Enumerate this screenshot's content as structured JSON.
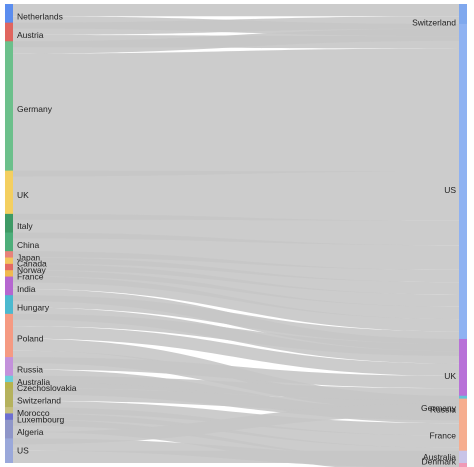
{
  "chart_data": {
    "type": "sankey",
    "title": "",
    "sources": [
      {
        "name": "Netherlands",
        "color": "#5b8def"
      },
      {
        "name": "Austria",
        "color": "#e0655f"
      },
      {
        "name": "Germany",
        "color": "#6cc08b"
      },
      {
        "name": "UK",
        "color": "#f4cf60"
      },
      {
        "name": "Italy",
        "color": "#3e9a65"
      },
      {
        "name": "China",
        "color": "#4dae7a"
      },
      {
        "name": "Japan",
        "color": "#e8827b"
      },
      {
        "name": "Canada",
        "color": "#f2c55e"
      },
      {
        "name": "Norway",
        "color": "#e36a64"
      },
      {
        "name": "France",
        "color": "#f0b94f"
      },
      {
        "name": "India",
        "color": "#b566d0"
      },
      {
        "name": "Hungary",
        "color": "#4bb9cf"
      },
      {
        "name": "Poland",
        "color": "#f59a82"
      },
      {
        "name": "Russia",
        "color": "#c391db"
      },
      {
        "name": "Australia",
        "color": "#6ccfd9"
      },
      {
        "name": "Czechoslovakia",
        "color": "#b7b34c"
      },
      {
        "name": "Switzerland",
        "color": "#b5b25d"
      },
      {
        "name": "Morocco",
        "color": "#c7c07f"
      },
      {
        "name": "Luxembourg",
        "color": "#6d6fd1"
      },
      {
        "name": "Algeria",
        "color": "#8f96c9"
      },
      {
        "name": "US",
        "color": "#9aa8da"
      }
    ],
    "targets": [
      {
        "name": "Switzerland",
        "color": "#7fa8ee"
      },
      {
        "name": "US",
        "color": "#8fb2f2"
      },
      {
        "name": "UK",
        "color": "#b871d8"
      },
      {
        "name": "Germany",
        "color": "#63c4d6"
      },
      {
        "name": "Russia",
        "color": "#f29a7e"
      },
      {
        "name": "France",
        "color": "#f6ad8f"
      },
      {
        "name": "Denmark",
        "color": "#f09ab6"
      },
      {
        "name": "Australia",
        "color": "#c9c4e8"
      }
    ],
    "links": [
      {
        "source": "Netherlands",
        "target": "Switzerland",
        "value": 1
      },
      {
        "source": "Netherlands",
        "target": "US",
        "value": 1
      },
      {
        "source": "Austria",
        "target": "Switzerland",
        "value": 1
      },
      {
        "source": "Austria",
        "target": "US",
        "value": 1
      },
      {
        "source": "Germany",
        "target": "Switzerland",
        "value": 1
      },
      {
        "source": "Germany",
        "target": "US",
        "value": 10
      },
      {
        "source": "UK",
        "target": "US",
        "value": 4
      },
      {
        "source": "Italy",
        "target": "US",
        "value": 2
      },
      {
        "source": "China",
        "target": "US",
        "value": 2
      },
      {
        "source": "Japan",
        "target": "US",
        "value": 1
      },
      {
        "source": "Canada",
        "target": "US",
        "value": 1
      },
      {
        "source": "Norway",
        "target": "US",
        "value": 1
      },
      {
        "source": "France",
        "target": "US",
        "value": 1
      },
      {
        "source": "India",
        "target": "US",
        "value": 1
      },
      {
        "source": "India",
        "target": "UK",
        "value": 1
      },
      {
        "source": "Hungary",
        "target": "US",
        "value": 1
      },
      {
        "source": "Hungary",
        "target": "UK",
        "value": 1
      },
      {
        "source": "Poland",
        "target": "US",
        "value": 1
      },
      {
        "source": "Poland",
        "target": "UK",
        "value": 1
      },
      {
        "source": "Poland",
        "target": "Germany",
        "value": 1
      },
      {
        "source": "Poland",
        "target": "France",
        "value": 1
      },
      {
        "source": "Russia",
        "target": "UK",
        "value": 1
      },
      {
        "source": "Russia",
        "target": "France",
        "value": 1
      },
      {
        "source": "Australia",
        "target": "UK",
        "value": 1
      },
      {
        "source": "Czechoslovakia",
        "target": "Germany",
        "value": 1
      },
      {
        "source": "Switzerland",
        "target": "UK",
        "value": 1
      },
      {
        "source": "Switzerland",
        "target": "France",
        "value": 1
      },
      {
        "source": "Morocco",
        "target": "France",
        "value": 1
      },
      {
        "source": "Luxembourg",
        "target": "France",
        "value": 1
      },
      {
        "source": "Algeria",
        "target": "France",
        "value": 1
      },
      {
        "source": "Algeria",
        "target": "Russia",
        "value": 1
      },
      {
        "source": "US",
        "target": "Denmark",
        "value": 1
      },
      {
        "source": "US",
        "target": "Australia",
        "value": 1
      }
    ]
  }
}
